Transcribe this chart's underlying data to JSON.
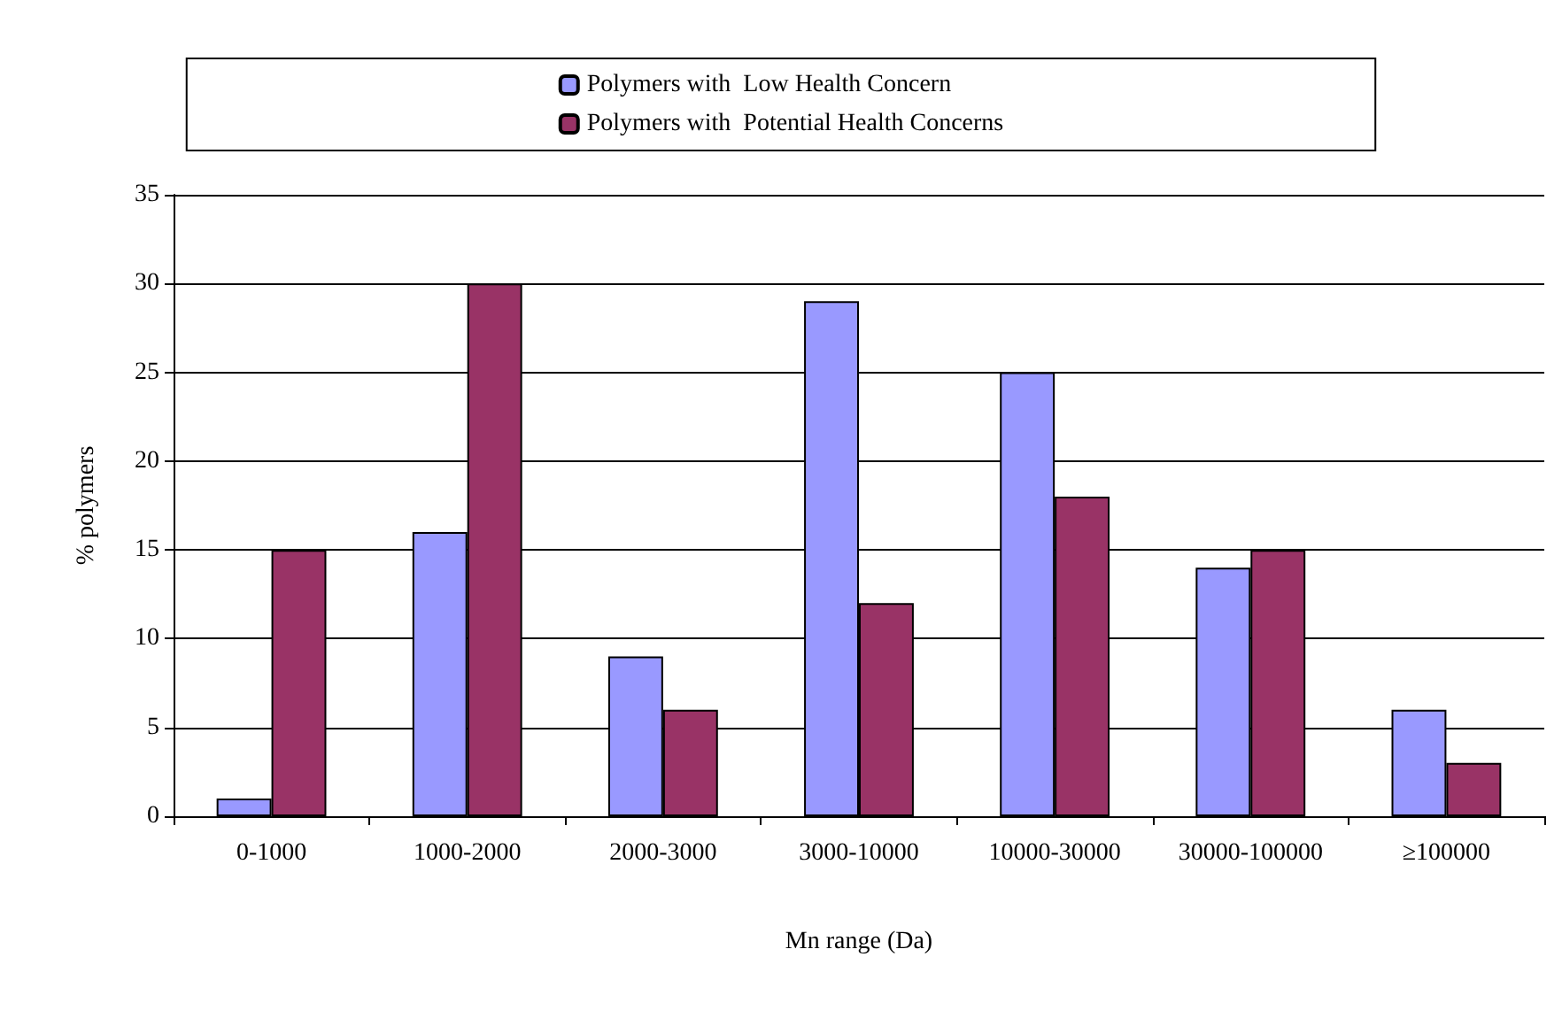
{
  "chart_data": {
    "type": "bar",
    "xlabel": "Mn range (Da)",
    "ylabel": "% polymers",
    "categories": [
      "0-1000",
      "1000-2000",
      "2000-3000",
      "3000-10000",
      "10000-30000",
      "30000-100000",
      "≥100000"
    ],
    "series": [
      {
        "name": "Polymers with  Low Health Concern",
        "color": "#9999ff",
        "values": [
          1,
          16,
          9,
          29,
          25,
          14,
          6
        ]
      },
      {
        "name": "Polymers with  Potential Health Concerns",
        "color": "#993366",
        "values": [
          15,
          30,
          6,
          12,
          18,
          15,
          3
        ]
      }
    ],
    "ylim": [
      0,
      35
    ],
    "yticks": [
      0,
      5,
      10,
      15,
      20,
      25,
      30,
      35
    ],
    "grid": "y",
    "legend": "top"
  }
}
